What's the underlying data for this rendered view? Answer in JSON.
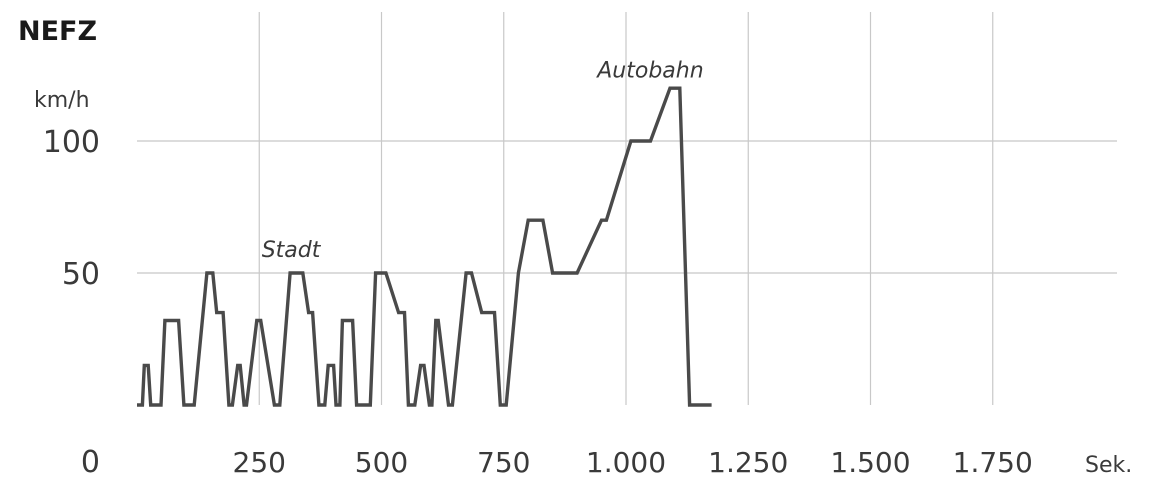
{
  "chart_data": {
    "type": "line",
    "title": "NEFZ",
    "ylabel": "km/h",
    "xunit": "Sek.",
    "xlim": [
      0,
      1900
    ],
    "ylim": [
      0,
      130
    ],
    "grid": true,
    "yticks": [
      {
        "value": 0,
        "label": "0"
      },
      {
        "value": 50,
        "label": "50"
      },
      {
        "value": 100,
        "label": "100"
      }
    ],
    "xticks": [
      {
        "value": 250,
        "label": "250"
      },
      {
        "value": 500,
        "label": "500"
      },
      {
        "value": 750,
        "label": "750"
      },
      {
        "value": 1000,
        "label": "1.000"
      },
      {
        "value": 1250,
        "label": "1.250"
      },
      {
        "value": 1500,
        "label": "1.500"
      },
      {
        "value": 1750,
        "label": "1.750"
      }
    ],
    "annotations": [
      {
        "text": "Stadt",
        "x": 315,
        "y": 56
      },
      {
        "text": "Autobahn",
        "x": 1050,
        "y": 124
      }
    ],
    "series": [
      {
        "name": "",
        "x": [
          0,
          11,
          15,
          23,
          28,
          49,
          57,
          85,
          96,
          117,
          143,
          155,
          163,
          176,
          188,
          195,
          206,
          211,
          219,
          224,
          245,
          253,
          281,
          292,
          313,
          339,
          351,
          359,
          372,
          384,
          391,
          402,
          407,
          415,
          420,
          441,
          449,
          477,
          488,
          509,
          535,
          547,
          555,
          568,
          580,
          587,
          598,
          603,
          611,
          616,
          637,
          645,
          673,
          684,
          705,
          731,
          743,
          755,
          780,
          800,
          830,
          850,
          900,
          950,
          960,
          1010,
          1050,
          1090,
          1110,
          1130,
          1160,
          1175
        ],
        "y": [
          0,
          0,
          15,
          15,
          0,
          0,
          32,
          32,
          0,
          0,
          50,
          50,
          35,
          35,
          0,
          0,
          15,
          15,
          0,
          0,
          32,
          32,
          0,
          0,
          50,
          50,
          35,
          35,
          0,
          0,
          15,
          15,
          0,
          0,
          32,
          32,
          0,
          0,
          50,
          50,
          35,
          35,
          0,
          0,
          15,
          15,
          0,
          0,
          32,
          32,
          0,
          0,
          50,
          50,
          35,
          35,
          0,
          0,
          50,
          70,
          70,
          50,
          50,
          70,
          70,
          100,
          100,
          120,
          120,
          0,
          0,
          0
        ]
      }
    ]
  }
}
